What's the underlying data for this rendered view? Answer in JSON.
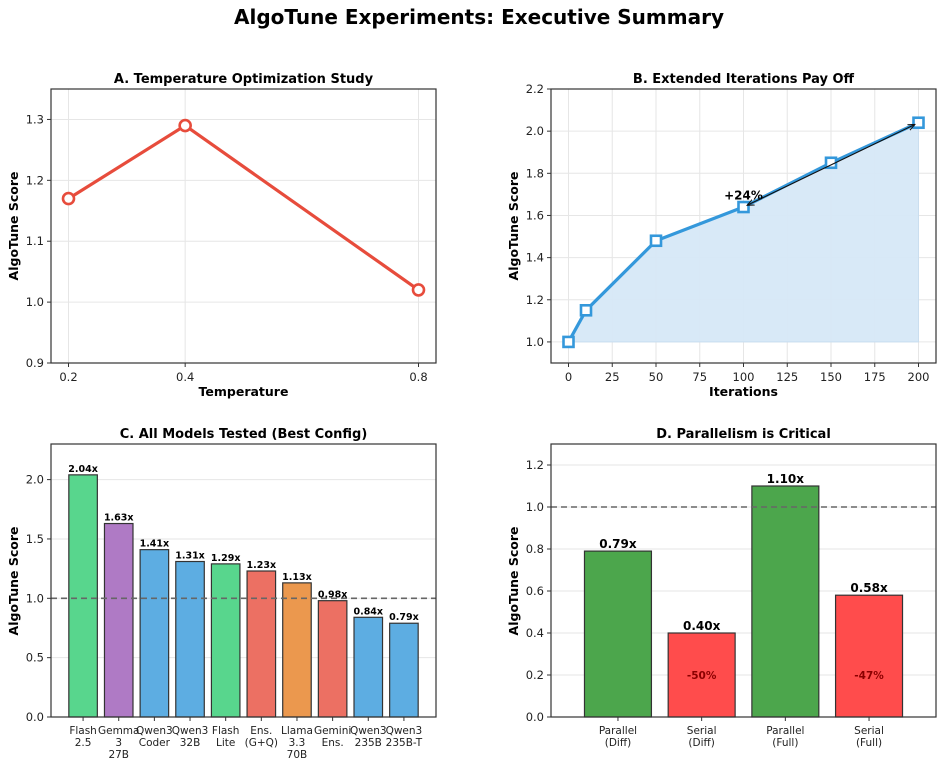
{
  "figure": {
    "title": "AlgoTune Experiments: Executive Summary"
  },
  "colors": {
    "red_line": "#e74c3c",
    "blue_line": "#3498db",
    "blue_fill": "#d6e8f7",
    "green_model": "#58d68d",
    "purple_model": "#af7ac5",
    "blue_model": "#5dade2",
    "red_model": "#ec7063",
    "orange_model": "#eb984e",
    "green_parallel": "#4ca64c",
    "red_serial": "#ff4c4c",
    "baseline": "#666666"
  },
  "chart_data": [
    {
      "id": "A",
      "type": "line",
      "title": "A. Temperature Optimization Study",
      "xlabel": "Temperature",
      "ylabel": "AlgoTune Score",
      "x": [
        0.2,
        0.4,
        0.8
      ],
      "values": [
        1.17,
        1.29,
        1.02
      ],
      "xticks": [
        0.2,
        0.4,
        0.8
      ],
      "xtick_labels": [
        "0.2",
        "0.4",
        "0.8"
      ],
      "yticks": [
        0.9,
        1.0,
        1.1,
        1.2,
        1.3
      ],
      "ytick_labels": [
        "0.9",
        "1.0",
        "1.1",
        "1.2",
        "1.3"
      ],
      "xlim": [
        0.17,
        0.83
      ],
      "ylim": [
        0.9,
        1.35
      ],
      "grid": true,
      "marker": "circle-open"
    },
    {
      "id": "B",
      "type": "area",
      "title": "B. Extended Iterations Pay Off",
      "xlabel": "Iterations",
      "ylabel": "AlgoTune Score",
      "x": [
        0,
        10,
        50,
        100,
        150,
        200
      ],
      "values": [
        1.0,
        1.15,
        1.48,
        1.64,
        1.85,
        2.04
      ],
      "fill_baseline": 1.0,
      "xticks": [
        0,
        25,
        50,
        75,
        100,
        125,
        150,
        175,
        200
      ],
      "xtick_labels": [
        "0",
        "25",
        "50",
        "75",
        "100",
        "125",
        "150",
        "175",
        "200"
      ],
      "yticks": [
        1.0,
        1.2,
        1.4,
        1.6,
        1.8,
        2.0,
        2.2
      ],
      "ytick_labels": [
        "1.0",
        "1.2",
        "1.4",
        "1.6",
        "1.8",
        "2.0",
        "2.2"
      ],
      "xlim": [
        -10,
        210
      ],
      "ylim": [
        0.9,
        2.2
      ],
      "grid": true,
      "marker": "square-open",
      "annotation": {
        "text": "+24%",
        "from": [
          100,
          1.64
        ],
        "to": [
          200,
          2.04
        ],
        "text_at": [
          100,
          1.7
        ]
      }
    },
    {
      "id": "C",
      "type": "bar",
      "title": "C. All Models Tested (Best Config)",
      "xlabel": "",
      "ylabel": "AlgoTune Score",
      "categories": [
        [
          "Flash",
          "2.5"
        ],
        [
          "Gemma",
          "3",
          "27B"
        ],
        [
          "Qwen3",
          "Coder"
        ],
        [
          "Qwen3",
          "32B"
        ],
        [
          "Flash",
          "Lite"
        ],
        [
          "Ens.",
          "(G+Q)"
        ],
        [
          "Llama",
          "3.3",
          "70B"
        ],
        [
          "Gemini",
          "Ens."
        ],
        [
          "Qwen3",
          "235B"
        ],
        [
          "Qwen3",
          "235B-T"
        ]
      ],
      "values": [
        2.04,
        1.63,
        1.41,
        1.31,
        1.29,
        1.23,
        1.13,
        0.98,
        0.84,
        0.79
      ],
      "data_labels": [
        "2.04x",
        "1.63x",
        "1.41x",
        "1.31x",
        "1.29x",
        "1.23x",
        "1.13x",
        "0.98x",
        "0.84x",
        "0.79x"
      ],
      "bar_colors": [
        "green_model",
        "purple_model",
        "blue_model",
        "blue_model",
        "green_model",
        "red_model",
        "orange_model",
        "red_model",
        "blue_model",
        "blue_model"
      ],
      "yticks": [
        0.0,
        0.5,
        1.0,
        1.5,
        2.0
      ],
      "ytick_labels": [
        "0.0",
        "0.5",
        "1.0",
        "1.5",
        "2.0"
      ],
      "ylim": [
        0,
        2.3
      ],
      "baseline": 1.0,
      "grid": true
    },
    {
      "id": "D",
      "type": "bar",
      "title": "D. Parallelism is Critical",
      "xlabel": "",
      "ylabel": "AlgoTune Score",
      "categories": [
        [
          "Parallel",
          "(Diff)"
        ],
        [
          "Serial",
          "(Diff)"
        ],
        [
          "Parallel",
          "(Full)"
        ],
        [
          "Serial",
          "(Full)"
        ]
      ],
      "values": [
        0.79,
        0.4,
        1.1,
        0.58
      ],
      "data_labels": [
        "0.79x",
        "0.40x",
        "1.10x",
        "0.58x"
      ],
      "inner_labels": [
        "",
        "-50%",
        "",
        "-47%"
      ],
      "bar_colors": [
        "green_parallel",
        "red_serial",
        "green_parallel",
        "red_serial"
      ],
      "yticks": [
        0.0,
        0.2,
        0.4,
        0.6,
        0.8,
        1.0,
        1.2
      ],
      "ytick_labels": [
        "0.0",
        "0.2",
        "0.4",
        "0.6",
        "0.8",
        "1.0",
        "1.2"
      ],
      "ylim": [
        0,
        1.3
      ],
      "baseline": 1.0,
      "grid": true
    }
  ]
}
